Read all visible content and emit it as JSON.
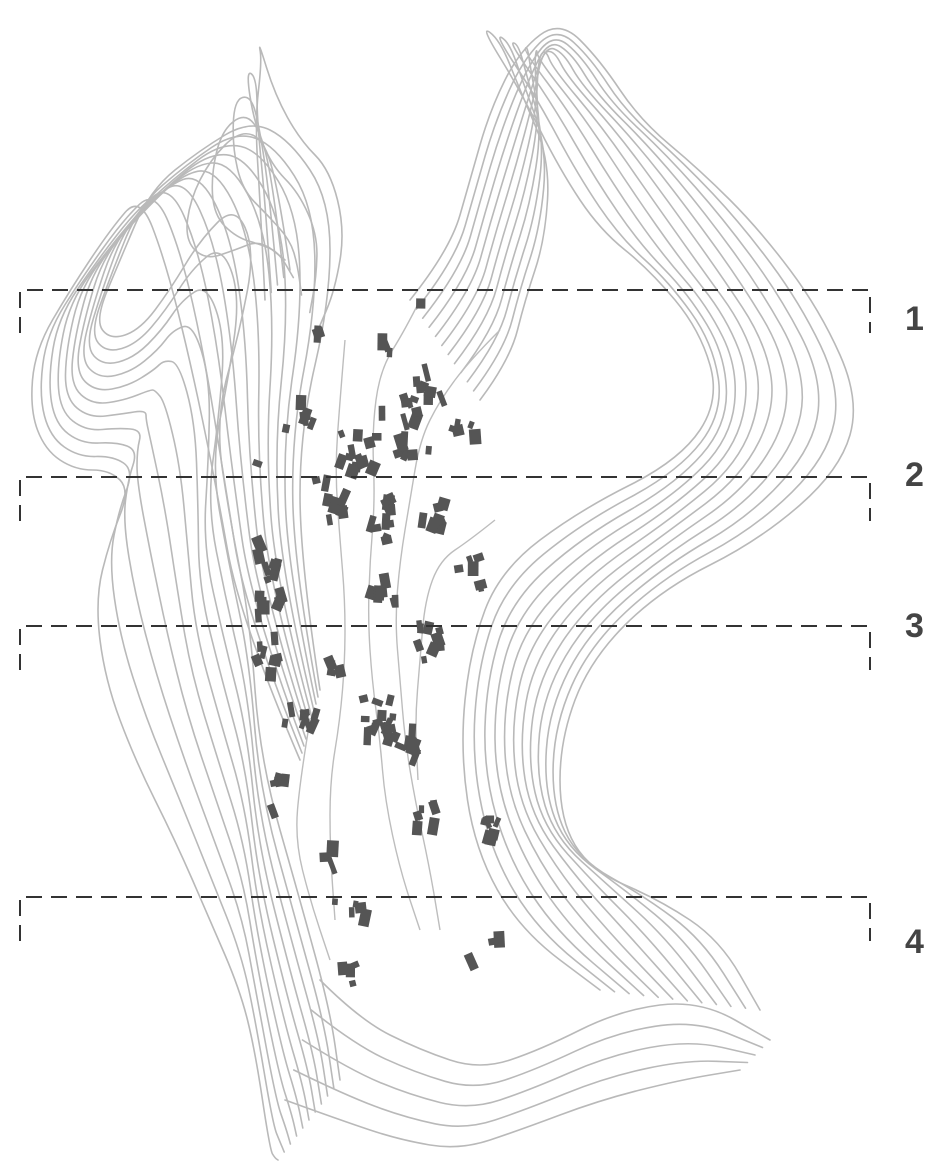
{
  "colors": {
    "background": "#ffffff",
    "contour": "#b9b9b9",
    "building": "#555555",
    "section_line": "#333333",
    "label": "#444444"
  },
  "map": {
    "sections": [
      {
        "label": "1"
      },
      {
        "label": "2"
      },
      {
        "label": "3"
      },
      {
        "label": "4"
      }
    ]
  }
}
